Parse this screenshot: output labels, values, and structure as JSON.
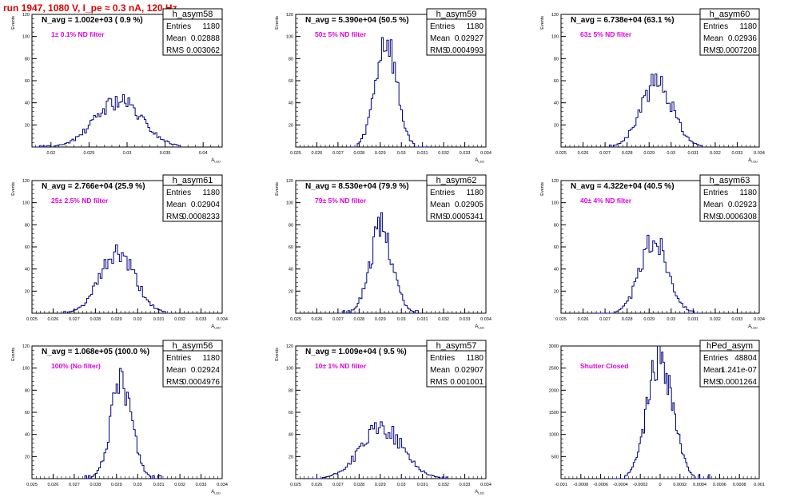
{
  "page_title": "run 1947,  1080 V, I_pe ≈ 0.3 nA, 120 Hz",
  "colors": {
    "line": "#000080",
    "label": "#e000e0",
    "title": "#e00000",
    "frame": "#000000"
  },
  "chart_data": [
    {
      "type": "histogram",
      "name": "h_asym58",
      "title": "N_avg = 1.002e+03 ( 0.9 %)",
      "label": "1± 0.1% ND filter",
      "stats": {
        "Entries": "1180",
        "Mean": "0.02888",
        "RMS": "0.003062"
      },
      "ylabel": "Events",
      "xlabel": "A_LED",
      "xlim": [
        0.0175,
        0.0425
      ],
      "ylim": [
        0,
        120
      ],
      "xticks": [
        "0.02",
        "0.025",
        "0.03",
        "0.035",
        "0.04"
      ],
      "xtick_values": [
        0.02,
        0.025,
        0.03,
        0.035,
        0.04
      ],
      "yticks": [
        "20",
        "40",
        "60",
        "80",
        "100",
        "120"
      ],
      "ytick_values": [
        20,
        40,
        60,
        80,
        100,
        120
      ],
      "mean": 0.02888,
      "rms": 0.003062,
      "peak": 43,
      "bins": 80,
      "range": [
        0.018,
        0.037
      ],
      "seed": 58
    },
    {
      "type": "histogram",
      "name": "h_asym59",
      "title": "N_avg = 5.390e+04 (50.5 %)",
      "label": "50± 5% ND filter",
      "stats": {
        "Entries": "1180",
        "Mean": "0.02927",
        "RMS": "0.0004993"
      },
      "ylabel": "Events",
      "xlabel": "A_LED",
      "xlim": [
        0.025,
        0.034
      ],
      "ylim": [
        0,
        120
      ],
      "xticks": [
        "0.025",
        "0.026",
        "0.027",
        "0.028",
        "0.029",
        "0.03",
        "0.031",
        "0.032",
        "0.033",
        "0.034"
      ],
      "xtick_values": [
        0.025,
        0.026,
        0.027,
        0.028,
        0.029,
        0.03,
        0.031,
        0.032,
        0.033,
        0.034
      ],
      "yticks": [
        "20",
        "40",
        "60",
        "80",
        "100",
        "120"
      ],
      "ytick_values": [
        20,
        40,
        60,
        80,
        100,
        120
      ],
      "mean": 0.02927,
      "rms": 0.0004993,
      "peak": 100,
      "bins": 45,
      "range": [
        0.0275,
        0.0312
      ],
      "seed": 59
    },
    {
      "type": "histogram",
      "name": "h_asym60",
      "title": "N_avg = 6.738e+04 (63.1 %)",
      "label": "63± 5% ND filter",
      "stats": {
        "Entries": "1180",
        "Mean": "0.02936",
        "RMS": "0.0007208"
      },
      "ylabel": "Events",
      "xlabel": "A_LED",
      "xlim": [
        0.025,
        0.034
      ],
      "ylim": [
        0,
        120
      ],
      "xticks": [
        "0.025",
        "0.026",
        "0.027",
        "0.028",
        "0.029",
        "0.03",
        "0.031",
        "0.032",
        "0.033",
        "0.034"
      ],
      "xtick_values": [
        0.025,
        0.026,
        0.027,
        0.028,
        0.029,
        0.03,
        0.031,
        0.032,
        0.033,
        0.034
      ],
      "yticks": [
        "20",
        "40",
        "60",
        "80",
        "100",
        "120"
      ],
      "ytick_values": [
        20,
        40,
        60,
        80,
        100,
        120
      ],
      "mean": 0.02936,
      "rms": 0.0007208,
      "peak": 60,
      "bins": 50,
      "range": [
        0.0272,
        0.0315
      ],
      "seed": 60
    },
    {
      "type": "histogram",
      "name": "h_asym61",
      "title": "N_avg = 2.766e+04 (25.9 %)",
      "label": "25± 2.5% ND filter",
      "stats": {
        "Entries": "1180",
        "Mean": "0.02904",
        "RMS": "0.0008233"
      },
      "ylabel": "Events",
      "xlabel": "A_LED",
      "xlim": [
        0.025,
        0.034
      ],
      "ylim": [
        0,
        120
      ],
      "xticks": [
        "0.025",
        "0.026",
        "0.027",
        "0.028",
        "0.029",
        "0.03",
        "0.031",
        "0.032",
        "0.033",
        "0.034"
      ],
      "xtick_values": [
        0.025,
        0.026,
        0.027,
        0.028,
        0.029,
        0.03,
        0.031,
        0.032,
        0.033,
        0.034
      ],
      "yticks": [
        "20",
        "40",
        "60",
        "80",
        "100",
        "120"
      ],
      "ytick_values": [
        20,
        40,
        60,
        80,
        100,
        120
      ],
      "mean": 0.02904,
      "rms": 0.0008233,
      "peak": 55,
      "bins": 55,
      "range": [
        0.0265,
        0.0315
      ],
      "seed": 61
    },
    {
      "type": "histogram",
      "name": "h_asym62",
      "title": "N_avg = 8.530e+04 (79.9 %)",
      "label": "79± 5% ND filter",
      "stats": {
        "Entries": "1180",
        "Mean": "0.02905",
        "RMS": "0.0005341"
      },
      "ylabel": "Events",
      "xlabel": "A_LED",
      "xlim": [
        0.025,
        0.034
      ],
      "ylim": [
        0,
        120
      ],
      "xticks": [
        "0.025",
        "0.026",
        "0.027",
        "0.028",
        "0.029",
        "0.03",
        "0.031",
        "0.032",
        "0.033",
        "0.034"
      ],
      "xtick_values": [
        0.025,
        0.026,
        0.027,
        0.028,
        0.029,
        0.03,
        0.031,
        0.032,
        0.033,
        0.034
      ],
      "yticks": [
        "20",
        "40",
        "60",
        "80",
        "100",
        "120"
      ],
      "ytick_values": [
        20,
        40,
        60,
        80,
        100,
        120
      ],
      "mean": 0.02905,
      "rms": 0.0005341,
      "peak": 79,
      "bins": 50,
      "range": [
        0.0271,
        0.0308
      ],
      "seed": 62
    },
    {
      "type": "histogram",
      "name": "h_asym63",
      "title": "N_avg = 4.322e+04 (40.5 %)",
      "label": "40± 4% ND filter",
      "stats": {
        "Entries": "1180",
        "Mean": "0.02923",
        "RMS": "0.0006308"
      },
      "ylabel": "Events",
      "xlabel": "A_LED",
      "xlim": [
        0.025,
        0.034
      ],
      "ylim": [
        0,
        120
      ],
      "xticks": [
        "0.025",
        "0.026",
        "0.027",
        "0.028",
        "0.029",
        "0.03",
        "0.031",
        "0.032",
        "0.033",
        "0.034"
      ],
      "xtick_values": [
        0.025,
        0.026,
        0.027,
        0.028,
        0.029,
        0.03,
        0.031,
        0.032,
        0.033,
        0.034
      ],
      "yticks": [
        "20",
        "40",
        "60",
        "80",
        "100",
        "120"
      ],
      "ytick_values": [
        20,
        40,
        60,
        80,
        100,
        120
      ],
      "mean": 0.02923,
      "rms": 0.0006308,
      "peak": 68,
      "bins": 55,
      "range": [
        0.0266,
        0.0313
      ],
      "seed": 63
    },
    {
      "type": "histogram",
      "name": "h_asym56",
      "title": "N_avg = 1.068e+05 (100.0 %)",
      "label": "100% (No filter)",
      "stats": {
        "Entries": "1180",
        "Mean": "0.02924",
        "RMS": "0.0004976"
      },
      "ylabel": "Events",
      "xlabel": "A_LED",
      "xlim": [
        0.025,
        0.034
      ],
      "ylim": [
        0,
        120
      ],
      "xticks": [
        "0.025",
        "0.026",
        "0.027",
        "0.028",
        "0.029",
        "0.03",
        "0.031",
        "0.032",
        "0.033",
        "0.034"
      ],
      "xtick_values": [
        0.025,
        0.026,
        0.027,
        0.028,
        0.029,
        0.03,
        0.031,
        0.032,
        0.033,
        0.034
      ],
      "yticks": [
        "20",
        "40",
        "60",
        "80",
        "100",
        "120"
      ],
      "ytick_values": [
        20,
        40,
        60,
        80,
        100,
        120
      ],
      "mean": 0.02924,
      "rms": 0.0004976,
      "peak": 90,
      "bins": 45,
      "range": [
        0.0275,
        0.0312
      ],
      "seed": 56
    },
    {
      "type": "histogram",
      "name": "h_asym57",
      "title": "N_avg = 1.009e+04 ( 9.5 %)",
      "label": "10± 1% ND filter",
      "stats": {
        "Entries": "1180",
        "Mean": "0.02907",
        "RMS": "0.001001"
      },
      "ylabel": "Events",
      "xlabel": "A_LED",
      "xlim": [
        0.025,
        0.034
      ],
      "ylim": [
        0,
        120
      ],
      "xticks": [
        "0.025",
        "0.026",
        "0.027",
        "0.028",
        "0.029",
        "0.03",
        "0.031",
        "0.032",
        "0.033",
        "0.034"
      ],
      "xtick_values": [
        0.025,
        0.026,
        0.027,
        0.028,
        0.029,
        0.03,
        0.031,
        0.032,
        0.033,
        0.034
      ],
      "yticks": [
        "20",
        "40",
        "60",
        "80",
        "100",
        "120"
      ],
      "ytick_values": [
        20,
        40,
        60,
        80,
        100,
        120
      ],
      "mean": 0.02907,
      "rms": 0.001001,
      "peak": 47,
      "bins": 70,
      "range": [
        0.0258,
        0.0322
      ],
      "seed": 57
    },
    {
      "type": "histogram",
      "name": "hPed_asym",
      "title": "",
      "label": "Shutter Closed",
      "stats": {
        "Entries": "48804",
        "Mean": "1.241e-07",
        "RMS": "0.0001264"
      },
      "ylabel": "",
      "xlabel": "",
      "xlim": [
        -0.001,
        0.001
      ],
      "ylim": [
        0,
        3000
      ],
      "xticks": [
        "-0.001",
        "-0.0008",
        "-0.0006",
        "-0.0004",
        "-0.0002",
        "0",
        "0.0002",
        "0.0004",
        "0.0006",
        "0.0008",
        "0.001"
      ],
      "xtick_values": [
        -0.001,
        -0.0008,
        -0.0006,
        -0.0004,
        -0.0002,
        0,
        0.0002,
        0.0004,
        0.0006,
        0.0008,
        0.001
      ],
      "yticks": [
        "500",
        "1000",
        "1500",
        "2000",
        "2500",
        "3000"
      ],
      "ytick_values": [
        500,
        1000,
        1500,
        2000,
        2500,
        3000
      ],
      "mean": 1.241e-07,
      "rms": 0.0001264,
      "peak": 2900,
      "bins": 70,
      "range": [
        -0.0005,
        0.0005
      ],
      "seed": 99
    }
  ]
}
